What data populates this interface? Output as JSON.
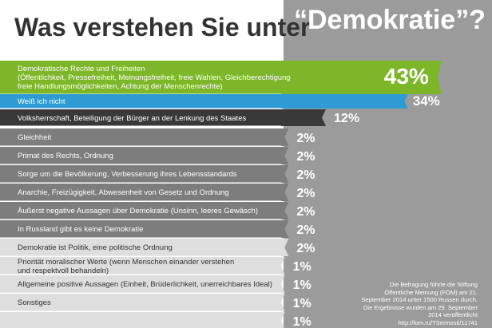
{
  "title_left": "Was verstehen Sie unter",
  "title_right": "“Demokratie”?",
  "note": "Die Befragung führte die Stiftung Öffentliche Meinung (FOM) am 21. September 2014 unter 1500 Russen durch. Die Ergebnisse wurden am 29. September 2014 veröffentlicht http://fom.ru/TSennosti/11741",
  "colors": {
    "green": "#7db628",
    "blue": "#2f9bd4",
    "dark": "#3a3939",
    "mid": "#7d7d7d",
    "light": "#dedede"
  },
  "chart_data": {
    "type": "bar",
    "orientation": "horizontal",
    "value_unit": "%",
    "categories": [
      "Demokratische Rechte und Freiheiten\n(Öffentlichkeit, Pressefreiheit, Meinungsfreiheit, freie Wahlen, Gleichberechtigung\nfreie Handlungsmöglichkeiten, Achtung der Menschenrechte)",
      "Weiß ich nicht",
      "Volksherrschaft, Beteiligung der Bürger an der Lenkung des Staates",
      "Gleichheit",
      "Primat des Rechts, Ordnung",
      "Sorge um die Bevölkerung, Verbesserung ihres Lebensstandards",
      "Anarchie, Freizügigkeit, Abwesenheit von Gesetz und Ordnung",
      "Äußerst negative Aussagen über Demokratie (Unsinn, leeres Gewäsch)",
      "In Russland gibt es keine Demokratie",
      "Demokratie ist Politik, eine politische Ordnung",
      "Priorität moralischer Werte (wenn Menschen einander verstehen\nund respektvoll behandeln)",
      "Allgemeine positive Aussagen (Einheit, Brüderlichkeit, unerreichbares Ideal)",
      "Sonstiges",
      ""
    ],
    "values": [
      43,
      34,
      12,
      2,
      2,
      2,
      2,
      2,
      2,
      2,
      1,
      1,
      1,
      1
    ],
    "value_labels": [
      "43%",
      "34%",
      "12%",
      "2%",
      "2%",
      "2%",
      "2%",
      "2%",
      "2%",
      "2%",
      "1%",
      "1%",
      "1%",
      "1%"
    ],
    "row_colors": [
      "green",
      "blue",
      "dark",
      "mid",
      "mid",
      "mid",
      "mid",
      "mid",
      "mid",
      "light",
      "light",
      "light",
      "light",
      "light"
    ]
  }
}
